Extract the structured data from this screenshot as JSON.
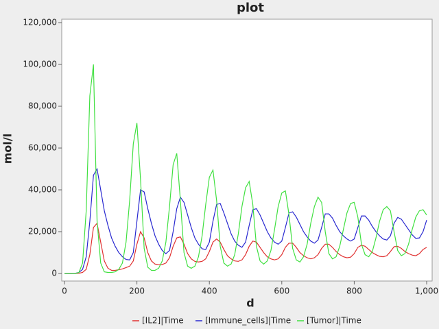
{
  "chart_data": {
    "type": "line",
    "title": "plot",
    "xlabel": "d",
    "ylabel": "mol/l",
    "x": [
      0,
      10,
      20,
      30,
      40,
      50,
      60,
      70,
      80,
      90,
      100,
      110,
      120,
      130,
      140,
      150,
      160,
      170,
      180,
      190,
      200,
      210,
      220,
      230,
      240,
      250,
      260,
      270,
      280,
      290,
      300,
      310,
      320,
      330,
      340,
      350,
      360,
      370,
      380,
      390,
      400,
      410,
      420,
      430,
      440,
      450,
      460,
      470,
      480,
      490,
      500,
      510,
      520,
      530,
      540,
      550,
      560,
      570,
      580,
      590,
      600,
      610,
      620,
      630,
      640,
      650,
      660,
      670,
      680,
      690,
      700,
      710,
      720,
      730,
      740,
      750,
      760,
      770,
      780,
      790,
      800,
      810,
      820,
      830,
      840,
      850,
      860,
      870,
      880,
      890,
      900,
      910,
      920,
      930,
      940,
      950,
      960,
      970,
      980,
      990,
      1000
    ],
    "series": [
      {
        "name": "[IL2]|Time",
        "color": "#e03030",
        "values": [
          0,
          0,
          0,
          0,
          100,
          500,
          2000,
          9000,
          22000,
          24000,
          15000,
          6000,
          2500,
          1500,
          1500,
          1800,
          2200,
          2800,
          3500,
          6000,
          14000,
          20000,
          17000,
          10000,
          6000,
          4500,
          4200,
          4300,
          5000,
          7500,
          13000,
          17000,
          17500,
          14000,
          9500,
          7000,
          5800,
          5500,
          5800,
          7000,
          10500,
          15000,
          16500,
          15000,
          11500,
          8500,
          7000,
          6000,
          5800,
          6500,
          9000,
          13000,
          15500,
          15000,
          12500,
          10000,
          8000,
          7000,
          6500,
          7000,
          9000,
          12500,
          14500,
          14500,
          12500,
          10000,
          8500,
          7500,
          7000,
          7500,
          9000,
          12000,
          14000,
          14000,
          12500,
          10500,
          9000,
          8000,
          7500,
          7800,
          9500,
          12500,
          13500,
          13000,
          11500,
          10000,
          9000,
          8200,
          8000,
          8500,
          10500,
          12800,
          13000,
          12000,
          10500,
          9500,
          8800,
          8500,
          9500,
          11500,
          12500
        ]
      },
      {
        "name": "[Immune_cells]|Time",
        "color": "#2828d0",
        "values": [
          0,
          0,
          0,
          100,
          500,
          2000,
          8000,
          25000,
          47000,
          50000,
          40000,
          30000,
          23000,
          17000,
          13000,
          10000,
          8000,
          6700,
          6500,
          10000,
          25000,
          40000,
          39000,
          31000,
          24000,
          18000,
          14000,
          11000,
          9500,
          11000,
          20000,
          31000,
          36500,
          34000,
          28000,
          22000,
          17000,
          14000,
          11800,
          11500,
          15000,
          25000,
          33000,
          33500,
          29000,
          24000,
          19000,
          15500,
          13500,
          12500,
          15000,
          23000,
          30500,
          31000,
          28000,
          24000,
          20000,
          17000,
          15000,
          14000,
          15500,
          22000,
          29000,
          29500,
          27000,
          23500,
          20000,
          17500,
          15500,
          14500,
          16000,
          22000,
          28500,
          28500,
          26500,
          23000,
          20000,
          18000,
          16500,
          15500,
          16500,
          22000,
          27500,
          27500,
          25500,
          22500,
          20000,
          18000,
          16500,
          16000,
          18000,
          24000,
          26800,
          26000,
          23500,
          21000,
          18500,
          16800,
          17000,
          20000,
          25500
        ]
      },
      {
        "name": "[Tumor]|Time",
        "color": "#40e040",
        "values": [
          0,
          0,
          0,
          0,
          500,
          5000,
          30000,
          85000,
          100000,
          25000,
          5000,
          800,
          500,
          500,
          800,
          2000,
          5000,
          15000,
          35000,
          62000,
          72000,
          45000,
          12000,
          3000,
          1500,
          1500,
          2500,
          6000,
          15000,
          32000,
          52000,
          57500,
          35000,
          10000,
          3500,
          2500,
          3500,
          8000,
          18000,
          33000,
          46000,
          49500,
          35000,
          13000,
          5000,
          3500,
          4500,
          9000,
          19000,
          32000,
          41000,
          44000,
          33000,
          13000,
          6000,
          4500,
          6000,
          11000,
          21000,
          32000,
          38500,
          39500,
          28000,
          12000,
          6500,
          5500,
          8000,
          14000,
          24000,
          32000,
          36500,
          34000,
          20000,
          9500,
          7000,
          8000,
          13000,
          21000,
          29000,
          33500,
          34000,
          27000,
          14000,
          9000,
          8000,
          10500,
          17000,
          25000,
          30500,
          32000,
          30000,
          20000,
          11000,
          8500,
          9500,
          14000,
          21000,
          27000,
          30000,
          30500,
          28000
        ]
      }
    ],
    "xlim": [
      0,
      1000
    ],
    "xticks": [
      0,
      200,
      400,
      600,
      800,
      {
        "value": 1000,
        "label": "1,000"
      }
    ],
    "ylim": [
      0,
      120000
    ],
    "yticks": [
      0,
      {
        "value": 20000,
        "label": "20,000"
      },
      {
        "value": 40000,
        "label": "40,000"
      },
      {
        "value": 60000,
        "label": "60,000"
      },
      {
        "value": 80000,
        "label": "80,000"
      },
      {
        "value": 100000,
        "label": "100,000"
      },
      {
        "value": 120000,
        "label": "120,000"
      }
    ],
    "legend": "bottom"
  }
}
